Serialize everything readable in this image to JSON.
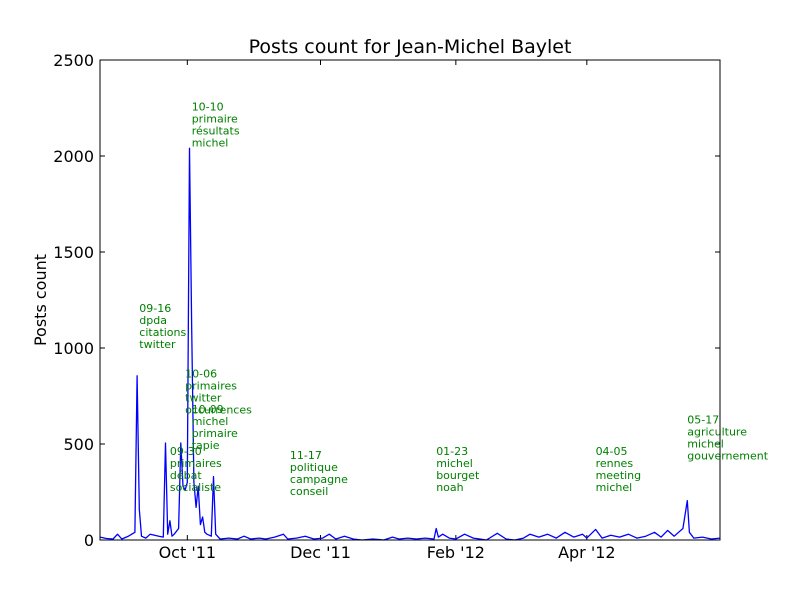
{
  "chart_data": {
    "type": "line",
    "title": "Posts count for Jean-Michel Baylet",
    "xlabel": "",
    "ylabel": "Posts count",
    "ylim": [
      0,
      2500
    ],
    "xlim": [
      "2011-08-22",
      "2012-06-01"
    ],
    "yticks": [
      {
        "value": 0,
        "label": "0"
      },
      {
        "value": 500,
        "label": "500"
      },
      {
        "value": 1000,
        "label": "1000"
      },
      {
        "value": 1500,
        "label": "1500"
      },
      {
        "value": 2000,
        "label": "2000"
      },
      {
        "value": 2500,
        "label": "2500"
      }
    ],
    "xticks": [
      {
        "date": "2011-10-01",
        "label": "Oct '11"
      },
      {
        "date": "2011-12-01",
        "label": "Dec '11"
      },
      {
        "date": "2012-02-01",
        "label": "Feb '12"
      },
      {
        "date": "2012-04-01",
        "label": "Apr '12"
      }
    ],
    "line_color": "#0000ff",
    "annotation_color": "#008000",
    "grid": false,
    "series": [
      {
        "name": "",
        "points": [
          [
            "2011-08-22",
            15
          ],
          [
            "2011-08-25",
            8
          ],
          [
            "2011-08-28",
            5
          ],
          [
            "2011-08-30",
            30
          ],
          [
            "2011-09-01",
            5
          ],
          [
            "2011-09-04",
            20
          ],
          [
            "2011-09-07",
            40
          ],
          [
            "2011-09-08",
            855
          ],
          [
            "2011-09-09",
            160
          ],
          [
            "2011-09-10",
            20
          ],
          [
            "2011-09-12",
            10
          ],
          [
            "2011-09-14",
            30
          ],
          [
            "2011-09-18",
            20
          ],
          [
            "2011-09-20",
            15
          ],
          [
            "2011-09-21",
            505
          ],
          [
            "2011-09-22",
            30
          ],
          [
            "2011-09-23",
            100
          ],
          [
            "2011-09-24",
            20
          ],
          [
            "2011-09-25",
            30
          ],
          [
            "2011-09-27",
            60
          ],
          [
            "2011-09-28",
            505
          ],
          [
            "2011-09-29",
            280
          ],
          [
            "2011-09-30",
            260
          ],
          [
            "2011-10-01",
            300
          ],
          [
            "2011-10-02",
            2040
          ],
          [
            "2011-10-03",
            1100
          ],
          [
            "2011-10-04",
            300
          ],
          [
            "2011-10-05",
            170
          ],
          [
            "2011-10-06",
            280
          ],
          [
            "2011-10-07",
            80
          ],
          [
            "2011-10-08",
            120
          ],
          [
            "2011-10-09",
            40
          ],
          [
            "2011-10-10",
            30
          ],
          [
            "2011-10-12",
            20
          ],
          [
            "2011-10-13",
            330
          ],
          [
            "2011-10-14",
            30
          ],
          [
            "2011-10-16",
            5
          ],
          [
            "2011-10-20",
            10
          ],
          [
            "2011-10-24",
            5
          ],
          [
            "2011-10-27",
            20
          ],
          [
            "2011-10-30",
            5
          ],
          [
            "2011-11-03",
            10
          ],
          [
            "2011-11-06",
            5
          ],
          [
            "2011-11-10",
            15
          ],
          [
            "2011-11-14",
            30
          ],
          [
            "2011-11-16",
            5
          ],
          [
            "2011-11-20",
            10
          ],
          [
            "2011-11-24",
            20
          ],
          [
            "2011-11-28",
            5
          ],
          [
            "2011-12-02",
            10
          ],
          [
            "2011-12-05",
            30
          ],
          [
            "2011-12-08",
            5
          ],
          [
            "2011-12-12",
            20
          ],
          [
            "2011-12-16",
            5
          ],
          [
            "2011-12-20",
            0
          ],
          [
            "2011-12-25",
            5
          ],
          [
            "2011-12-30",
            0
          ],
          [
            "2012-01-03",
            15
          ],
          [
            "2012-01-06",
            5
          ],
          [
            "2012-01-10",
            10
          ],
          [
            "2012-01-14",
            5
          ],
          [
            "2012-01-18",
            10
          ],
          [
            "2012-01-22",
            5
          ],
          [
            "2012-01-23",
            60
          ],
          [
            "2012-01-24",
            15
          ],
          [
            "2012-01-26",
            30
          ],
          [
            "2012-01-29",
            10
          ],
          [
            "2012-02-01",
            5
          ],
          [
            "2012-02-05",
            30
          ],
          [
            "2012-02-09",
            10
          ],
          [
            "2012-02-12",
            5
          ],
          [
            "2012-02-15",
            0
          ],
          [
            "2012-02-20",
            35
          ],
          [
            "2012-02-24",
            5
          ],
          [
            "2012-02-28",
            0
          ],
          [
            "2012-03-03",
            10
          ],
          [
            "2012-03-06",
            30
          ],
          [
            "2012-03-10",
            15
          ],
          [
            "2012-03-14",
            30
          ],
          [
            "2012-03-18",
            10
          ],
          [
            "2012-03-22",
            40
          ],
          [
            "2012-03-26",
            15
          ],
          [
            "2012-03-30",
            30
          ],
          [
            "2012-04-01",
            10
          ],
          [
            "2012-04-05",
            55
          ],
          [
            "2012-04-08",
            10
          ],
          [
            "2012-04-12",
            25
          ],
          [
            "2012-04-16",
            15
          ],
          [
            "2012-04-20",
            30
          ],
          [
            "2012-04-24",
            10
          ],
          [
            "2012-04-28",
            20
          ],
          [
            "2012-05-02",
            40
          ],
          [
            "2012-05-05",
            15
          ],
          [
            "2012-05-08",
            50
          ],
          [
            "2012-05-11",
            20
          ],
          [
            "2012-05-15",
            60
          ],
          [
            "2012-05-17",
            205
          ],
          [
            "2012-05-18",
            40
          ],
          [
            "2012-05-20",
            10
          ],
          [
            "2012-05-24",
            15
          ],
          [
            "2012-05-28",
            5
          ],
          [
            "2012-06-01",
            10
          ]
        ]
      }
    ],
    "annotations": [
      {
        "date": "2011-09-09",
        "value": 1000,
        "lines": [
          "09-16",
          "dpda",
          "citations",
          "twitter"
        ]
      },
      {
        "date": "2011-10-03",
        "value": 2050,
        "lines": [
          "10-10",
          "primaire",
          "résultats",
          "michel"
        ]
      },
      {
        "date": "2011-09-30",
        "value": 660,
        "lines": [
          "10-06",
          "primaires",
          "twitter",
          "occurrences"
        ]
      },
      {
        "date": "2011-10-03",
        "value": 475,
        "lines": [
          "10-09",
          "michel",
          "primaire",
          "tapie"
        ]
      },
      {
        "date": "2011-09-23",
        "value": 255,
        "lines": [
          "09-30",
          "primaires",
          "débat",
          "socialiste"
        ]
      },
      {
        "date": "2011-11-17",
        "value": 235,
        "lines": [
          "11-17",
          "politique",
          "campagne",
          "conseil"
        ]
      },
      {
        "date": "2012-01-23",
        "value": 255,
        "lines": [
          "01-23",
          "michel",
          "bourget",
          "noah"
        ]
      },
      {
        "date": "2012-04-05",
        "value": 255,
        "lines": [
          "04-05",
          "rennes",
          "meeting",
          "michel"
        ]
      },
      {
        "date": "2012-05-17",
        "value": 420,
        "lines": [
          "05-17",
          "agriculture",
          "michel",
          "gouvernement"
        ]
      }
    ]
  }
}
